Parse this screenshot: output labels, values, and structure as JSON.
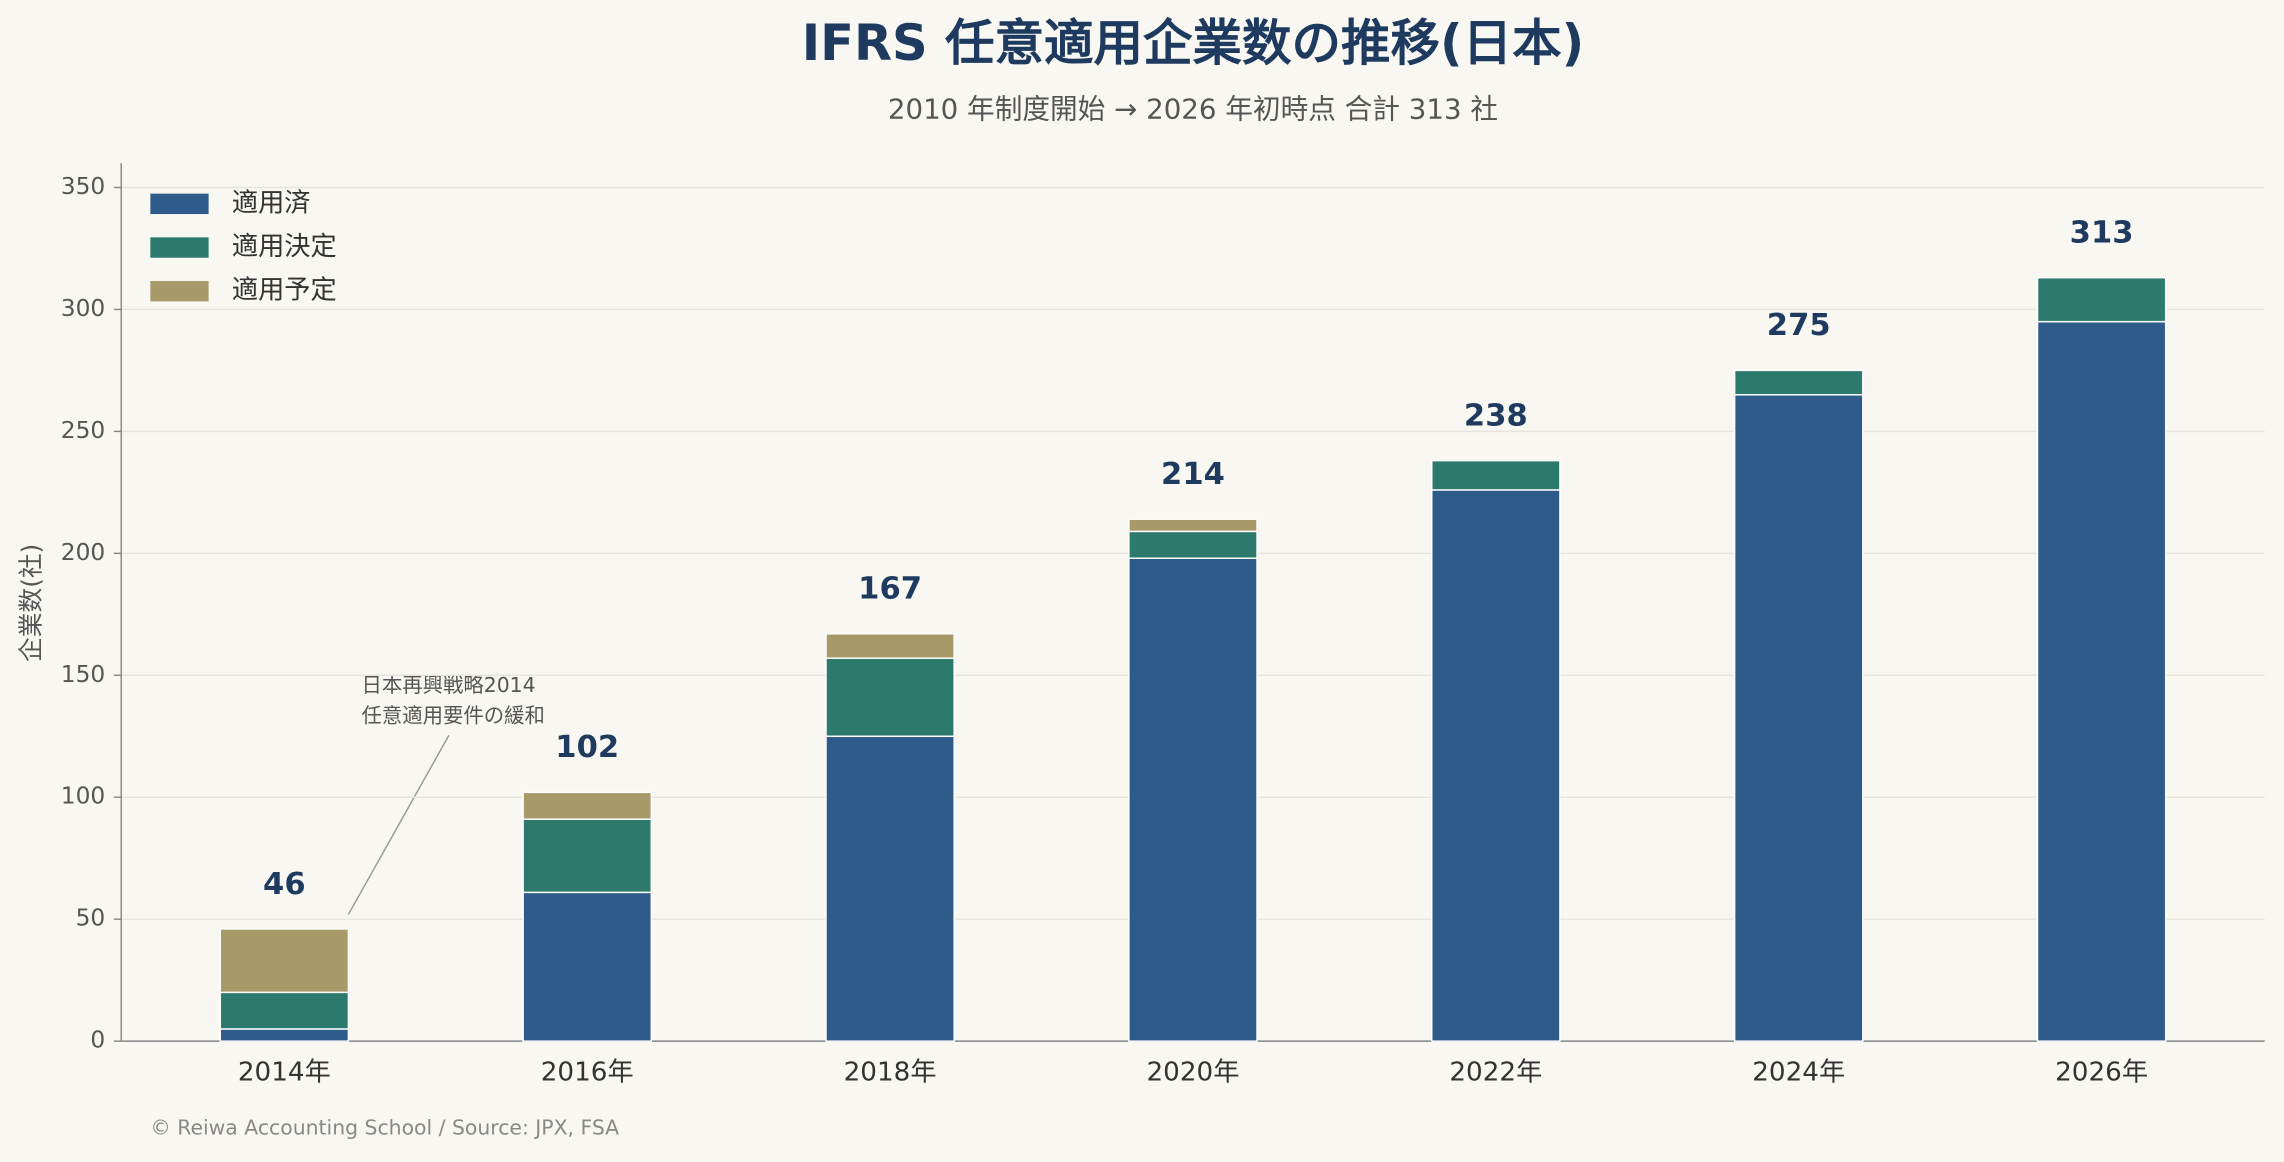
{
  "chart_data": {
    "type": "stacked-bar",
    "title": "IFRS 任意適用企業数の推移(日本)",
    "subtitle": "2010 年制度開始 → 2026 年初時点 合計 313 社",
    "y_label": "企業数(社)",
    "categories": [
      "2014年",
      "2016年",
      "2018年",
      "2020年",
      "2022年",
      "2024年",
      "2026年"
    ],
    "series": [
      {
        "name": "適用済",
        "color": "#2e5b8a",
        "values": [
          5,
          61,
          125,
          198,
          226,
          265,
          295
        ]
      },
      {
        "name": "適用決定",
        "color": "#2b7a6b",
        "values": [
          15,
          30,
          32,
          11,
          12,
          10,
          18
        ]
      },
      {
        "name": "適用予定",
        "color": "#a89968",
        "values": [
          26,
          11,
          10,
          5,
          0,
          0,
          0
        ]
      }
    ],
    "totals": [
      46,
      102,
      167,
      214,
      238,
      275,
      313
    ],
    "ylim": [
      0,
      360
    ],
    "yticks": [
      0,
      50,
      100,
      150,
      200,
      250,
      300,
      350
    ],
    "grid": true,
    "legend": "upper-left",
    "annotation": [
      "日本再興戦略2014",
      "任意適用要件の緩和"
    ],
    "footer": "© Reiwa Accounting School / Source: JPX, FSA"
  }
}
